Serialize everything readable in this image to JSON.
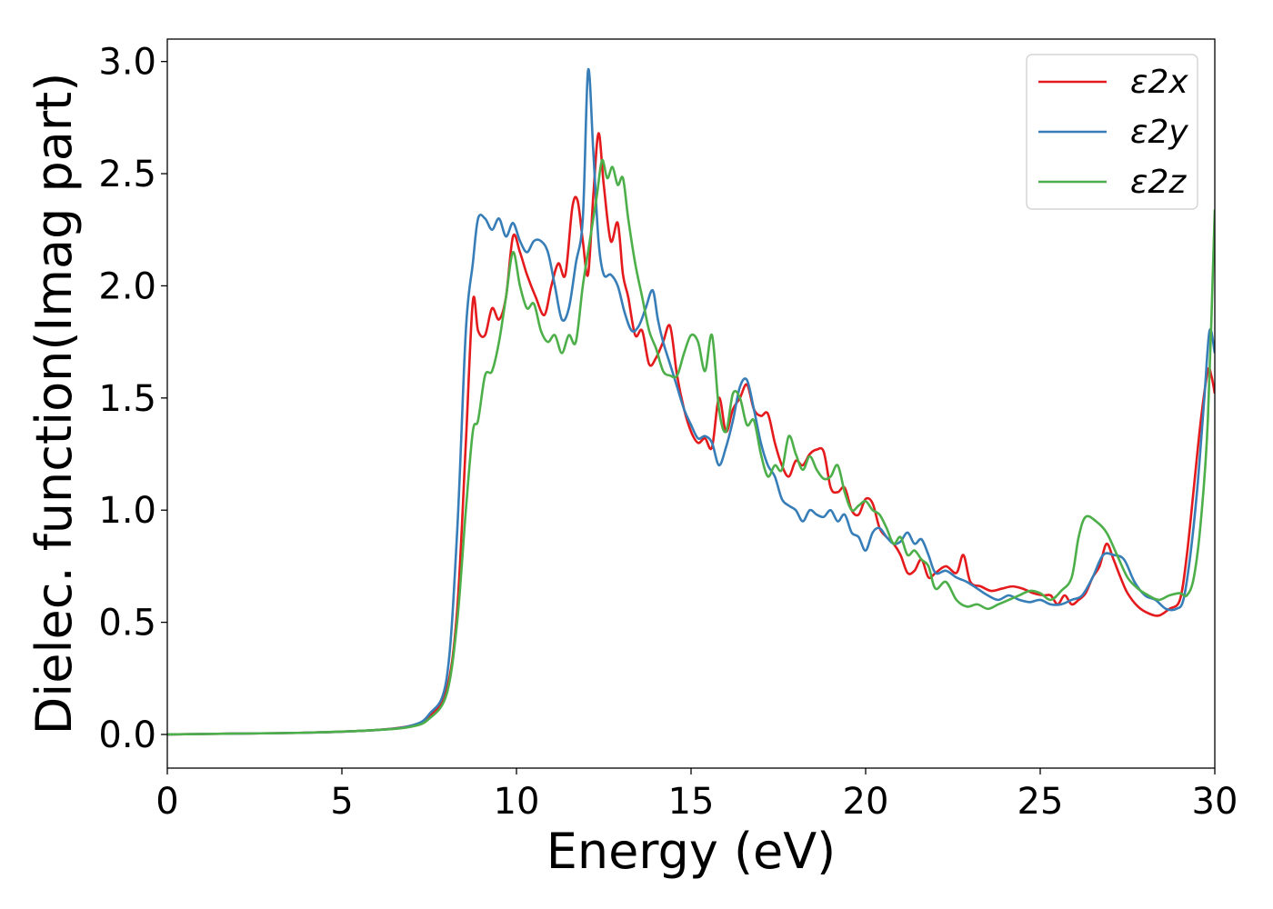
{
  "chart_data": {
    "type": "line",
    "xlabel": "Energy (eV)",
    "ylabel": "Dielec. function(Imag part)",
    "xlim": [
      0,
      30
    ],
    "ylim": [
      -0.15,
      3.1
    ],
    "xticks": [
      "0",
      "5",
      "10",
      "15",
      "20",
      "25",
      "30"
    ],
    "yticks": [
      "0.0",
      "0.5",
      "1.0",
      "1.5",
      "2.0",
      "2.5",
      "3.0"
    ],
    "grid": false,
    "legend_position": "top-right",
    "series": [
      {
        "name": "ε2x",
        "color": "#e41a1c",
        "x": [
          0,
          2,
          4,
          6,
          7,
          7.5,
          8,
          8.3,
          8.55,
          8.75,
          8.9,
          9.1,
          9.3,
          9.5,
          9.7,
          9.9,
          10.1,
          10.3,
          10.55,
          10.8,
          11.0,
          11.2,
          11.4,
          11.6,
          11.75,
          11.9,
          12.05,
          12.2,
          12.35,
          12.5,
          12.7,
          12.9,
          13.05,
          13.2,
          13.4,
          13.6,
          13.8,
          14.0,
          14.2,
          14.4,
          14.6,
          14.8,
          15.0,
          15.2,
          15.4,
          15.6,
          15.8,
          16.0,
          16.2,
          16.4,
          16.6,
          16.8,
          17.0,
          17.2,
          17.4,
          17.6,
          17.8,
          18.0,
          18.2,
          18.4,
          18.6,
          18.8,
          19.0,
          19.2,
          19.4,
          19.6,
          19.8,
          20.0,
          20.2,
          20.4,
          20.6,
          20.8,
          21.0,
          21.2,
          21.4,
          21.6,
          21.8,
          22.0,
          22.3,
          22.6,
          22.8,
          23.0,
          23.3,
          23.6,
          23.9,
          24.2,
          24.5,
          24.8,
          25.1,
          25.3,
          25.5,
          25.7,
          25.9,
          26.1,
          26.3,
          26.5,
          26.7,
          26.9,
          27.1,
          27.3,
          27.5,
          27.8,
          28.1,
          28.4,
          28.7,
          29.0,
          29.2,
          29.4,
          29.6,
          29.8,
          29.9,
          30.0
        ],
        "y": [
          0.0,
          0.004,
          0.008,
          0.02,
          0.04,
          0.08,
          0.2,
          0.55,
          1.3,
          1.93,
          1.8,
          1.78,
          1.9,
          1.85,
          1.95,
          2.22,
          2.15,
          2.05,
          1.95,
          1.87,
          2.0,
          2.1,
          2.05,
          2.35,
          2.38,
          2.2,
          2.05,
          2.4,
          2.68,
          2.45,
          2.2,
          2.28,
          2.05,
          1.95,
          1.78,
          1.8,
          1.65,
          1.68,
          1.75,
          1.82,
          1.6,
          1.45,
          1.35,
          1.3,
          1.32,
          1.28,
          1.5,
          1.35,
          1.45,
          1.5,
          1.56,
          1.45,
          1.42,
          1.43,
          1.3,
          1.2,
          1.15,
          1.22,
          1.2,
          1.25,
          1.27,
          1.26,
          1.1,
          1.08,
          1.1,
          1.0,
          0.98,
          1.05,
          1.03,
          0.92,
          0.88,
          0.85,
          0.8,
          0.72,
          0.73,
          0.78,
          0.7,
          0.72,
          0.75,
          0.72,
          0.8,
          0.68,
          0.66,
          0.64,
          0.65,
          0.66,
          0.65,
          0.63,
          0.62,
          0.62,
          0.58,
          0.62,
          0.58,
          0.6,
          0.63,
          0.7,
          0.75,
          0.85,
          0.78,
          0.7,
          0.63,
          0.57,
          0.54,
          0.53,
          0.56,
          0.6,
          0.8,
          1.1,
          1.4,
          1.62,
          1.6,
          1.52
        ]
      },
      {
        "name": "ε2y",
        "color": "#377eb8",
        "x": [
          0,
          2,
          4,
          6,
          7,
          7.5,
          8,
          8.3,
          8.55,
          8.75,
          8.9,
          9.1,
          9.3,
          9.5,
          9.7,
          9.9,
          10.1,
          10.3,
          10.5,
          10.7,
          10.9,
          11.1,
          11.3,
          11.5,
          11.7,
          11.9,
          12.05,
          12.2,
          12.35,
          12.5,
          12.7,
          12.9,
          13.1,
          13.3,
          13.5,
          13.7,
          13.9,
          14.05,
          14.2,
          14.4,
          14.6,
          14.8,
          15.0,
          15.2,
          15.4,
          15.6,
          15.8,
          16.0,
          16.2,
          16.4,
          16.6,
          16.8,
          17.0,
          17.2,
          17.4,
          17.6,
          17.8,
          18.0,
          18.2,
          18.4,
          18.6,
          18.8,
          19.0,
          19.2,
          19.4,
          19.6,
          19.8,
          20.0,
          20.2,
          20.4,
          20.6,
          20.8,
          21.0,
          21.2,
          21.4,
          21.6,
          21.8,
          22.0,
          22.3,
          22.6,
          22.9,
          23.2,
          23.5,
          23.8,
          24.1,
          24.4,
          24.7,
          25.0,
          25.3,
          25.6,
          25.9,
          26.2,
          26.5,
          26.8,
          27.1,
          27.4,
          27.7,
          28.0,
          28.3,
          28.6,
          28.9,
          29.1,
          29.3,
          29.5,
          29.7,
          29.85,
          30.0
        ],
        "y": [
          0.0,
          0.004,
          0.008,
          0.02,
          0.04,
          0.09,
          0.25,
          0.9,
          1.8,
          2.1,
          2.3,
          2.3,
          2.25,
          2.3,
          2.22,
          2.28,
          2.2,
          2.15,
          2.2,
          2.2,
          2.15,
          2.0,
          1.85,
          1.9,
          2.1,
          2.3,
          2.96,
          2.6,
          2.2,
          2.05,
          2.05,
          2.0,
          1.88,
          1.8,
          1.82,
          1.9,
          1.98,
          1.85,
          1.75,
          1.65,
          1.55,
          1.45,
          1.38,
          1.32,
          1.33,
          1.3,
          1.2,
          1.28,
          1.4,
          1.55,
          1.58,
          1.45,
          1.3,
          1.2,
          1.15,
          1.05,
          1.02,
          1.0,
          0.95,
          1.0,
          0.98,
          0.97,
          1.0,
          0.95,
          0.98,
          0.9,
          0.88,
          0.82,
          0.9,
          0.92,
          0.88,
          0.85,
          0.86,
          0.9,
          0.85,
          0.87,
          0.8,
          0.72,
          0.73,
          0.7,
          0.68,
          0.65,
          0.62,
          0.6,
          0.62,
          0.6,
          0.59,
          0.6,
          0.58,
          0.58,
          0.6,
          0.62,
          0.7,
          0.8,
          0.8,
          0.78,
          0.68,
          0.62,
          0.6,
          0.56,
          0.56,
          0.6,
          0.8,
          1.1,
          1.5,
          1.8,
          1.7
        ]
      },
      {
        "name": "ε2z",
        "color": "#4daf4a",
        "x": [
          0,
          2,
          4,
          6,
          7,
          7.5,
          8,
          8.3,
          8.55,
          8.75,
          8.9,
          9.1,
          9.3,
          9.5,
          9.7,
          9.9,
          10.1,
          10.3,
          10.5,
          10.7,
          10.9,
          11.1,
          11.3,
          11.5,
          11.7,
          11.9,
          12.1,
          12.3,
          12.45,
          12.6,
          12.75,
          12.9,
          13.05,
          13.2,
          13.4,
          13.6,
          13.8,
          14.0,
          14.2,
          14.4,
          14.6,
          14.8,
          15.0,
          15.2,
          15.4,
          15.6,
          15.8,
          16.0,
          16.2,
          16.4,
          16.6,
          16.8,
          17.0,
          17.2,
          17.4,
          17.6,
          17.8,
          18.0,
          18.2,
          18.4,
          18.6,
          18.8,
          19.0,
          19.2,
          19.4,
          19.6,
          19.8,
          20.0,
          20.2,
          20.4,
          20.6,
          20.8,
          21.0,
          21.2,
          21.4,
          21.6,
          21.8,
          22.0,
          22.3,
          22.6,
          22.9,
          23.2,
          23.5,
          23.8,
          24.1,
          24.4,
          24.7,
          25.0,
          25.3,
          25.6,
          25.9,
          26.1,
          26.3,
          26.6,
          26.9,
          27.2,
          27.5,
          27.8,
          28.1,
          28.4,
          28.7,
          29.0,
          29.2,
          29.4,
          29.6,
          29.8,
          30.0
        ],
        "y": [
          0.0,
          0.004,
          0.008,
          0.02,
          0.035,
          0.07,
          0.18,
          0.5,
          1.0,
          1.35,
          1.4,
          1.6,
          1.62,
          1.75,
          1.95,
          2.15,
          2.0,
          1.9,
          1.92,
          1.8,
          1.75,
          1.78,
          1.7,
          1.78,
          1.75,
          2.0,
          2.2,
          2.4,
          2.56,
          2.48,
          2.53,
          2.45,
          2.48,
          2.3,
          2.1,
          1.95,
          1.8,
          1.72,
          1.62,
          1.6,
          1.6,
          1.7,
          1.78,
          1.75,
          1.62,
          1.78,
          1.45,
          1.35,
          1.52,
          1.5,
          1.38,
          1.4,
          1.25,
          1.15,
          1.2,
          1.18,
          1.33,
          1.25,
          1.18,
          1.24,
          1.18,
          1.14,
          1.15,
          1.2,
          1.08,
          1.0,
          1.02,
          1.04,
          1.0,
          0.98,
          0.92,
          0.85,
          0.88,
          0.8,
          0.82,
          0.78,
          0.75,
          0.65,
          0.68,
          0.6,
          0.57,
          0.58,
          0.56,
          0.58,
          0.6,
          0.62,
          0.64,
          0.63,
          0.6,
          0.64,
          0.7,
          0.88,
          0.97,
          0.95,
          0.9,
          0.8,
          0.7,
          0.65,
          0.62,
          0.6,
          0.62,
          0.63,
          0.62,
          0.7,
          0.95,
          1.4,
          2.34
        ]
      }
    ]
  }
}
